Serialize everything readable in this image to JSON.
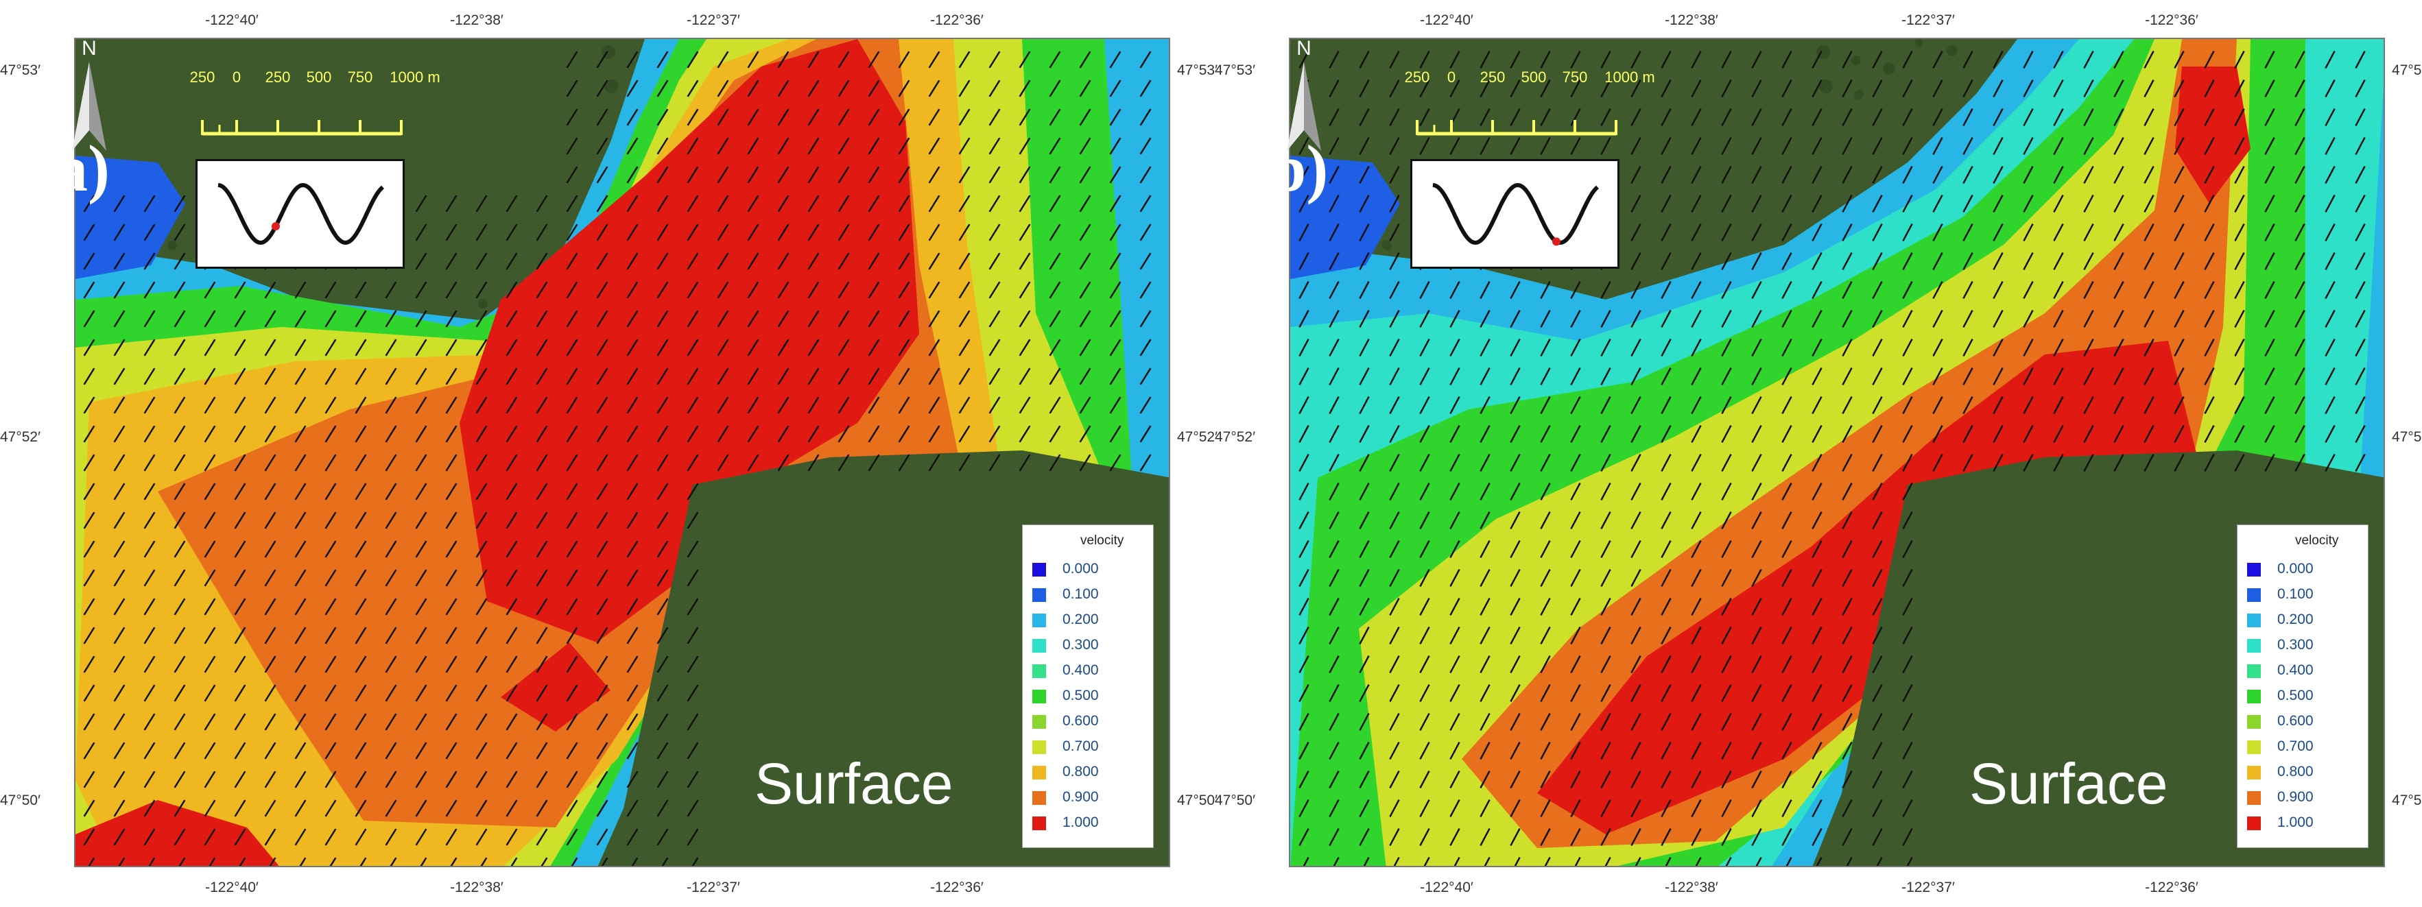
{
  "panels": [
    {
      "id": "a",
      "letter": "(a)",
      "depth_label": "Surface",
      "tide_phase": 0.35,
      "contour_variant": "a"
    },
    {
      "id": "b",
      "letter": "(b)",
      "depth_label": "Surface",
      "tide_phase": 0.75,
      "contour_variant": "b"
    }
  ],
  "axes": {
    "lon_ticks": [
      "-122°40′",
      "-122°38′",
      "-122°37′",
      "-122°36′"
    ],
    "lat_ticks": [
      "47°53′",
      "47°52′",
      "47°50′"
    ]
  },
  "scalebar": {
    "labels": [
      "250",
      "0",
      "250",
      "500",
      "750",
      "1000 m"
    ],
    "color": "#ffff66"
  },
  "north_arrow": {
    "label": "N"
  },
  "legend": {
    "title": "velocity",
    "entries": [
      {
        "value": "0.000",
        "color": "#1a10e0"
      },
      {
        "value": "0.100",
        "color": "#1f5fe6"
      },
      {
        "value": "0.200",
        "color": "#27b6e6"
      },
      {
        "value": "0.300",
        "color": "#2ee0c8"
      },
      {
        "value": "0.400",
        "color": "#34e08a"
      },
      {
        "value": "0.500",
        "color": "#2fd42c"
      },
      {
        "value": "0.600",
        "color": "#8ad62c"
      },
      {
        "value": "0.700",
        "color": "#cfe02a"
      },
      {
        "value": "0.800",
        "color": "#f0b820"
      },
      {
        "value": "0.900",
        "color": "#e8701c"
      },
      {
        "value": "1.000",
        "color": "#e01a12"
      }
    ]
  },
  "colors": {
    "land": "#3e5a2c",
    "land_dark": "#2c4420",
    "arrow": "#111111",
    "tide_marker": "#e02020"
  }
}
